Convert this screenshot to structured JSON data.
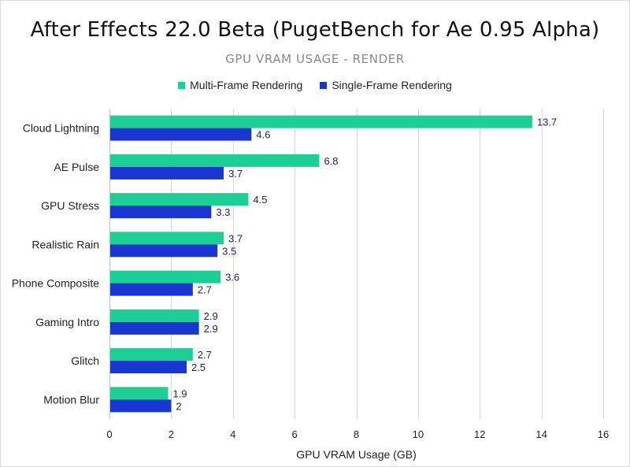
{
  "chart_data": {
    "type": "bar",
    "orientation": "horizontal",
    "title": "After Effects 22.0 Beta (PugetBench for Ae 0.95 Alpha)",
    "subtitle": "GPU VRAM USAGE - RENDER",
    "xlabel": "GPU VRAM Usage (GB)",
    "ylabel": "",
    "xlim": [
      0,
      16
    ],
    "xticks": [
      0,
      2,
      4,
      6,
      8,
      10,
      12,
      14,
      16
    ],
    "grid": true,
    "legend_position": "top",
    "categories": [
      "Cloud Lightning",
      "AE Pulse",
      "GPU Stress",
      "Realistic Rain",
      "Phone Composite",
      "Gaming Intro",
      "Glitch",
      "Motion Blur"
    ],
    "series": [
      {
        "name": "Multi-Frame Rendering",
        "color": "#1ccf95",
        "values": [
          13.7,
          6.8,
          4.5,
          3.7,
          3.6,
          2.9,
          2.7,
          1.9
        ],
        "labels": [
          "13.7",
          "6.8",
          "4.5",
          "3.7",
          "3.6",
          "2.9",
          "2.7",
          "1.9"
        ]
      },
      {
        "name": "Single-Frame Rendering",
        "color": "#1936d1",
        "values": [
          4.6,
          3.7,
          3.3,
          3.5,
          2.7,
          2.9,
          2.5,
          2.0
        ],
        "labels": [
          "4.6",
          "3.7",
          "3.3",
          "3.5",
          "2.7",
          "2.9",
          "2.5",
          "2"
        ]
      }
    ]
  }
}
